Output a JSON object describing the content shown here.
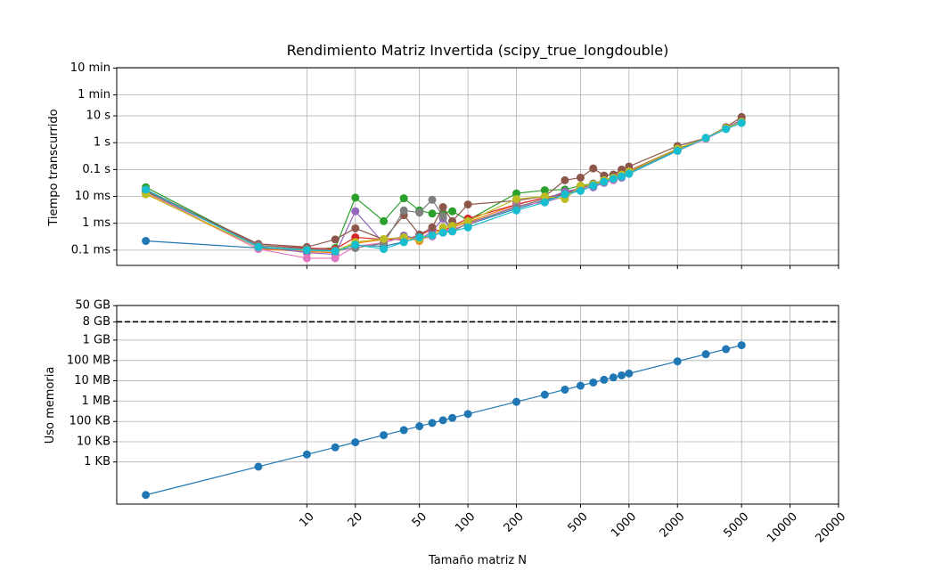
{
  "chart_data": [
    {
      "type": "line",
      "title": "Rendimiento Matriz Invertida (scipy_true_longdouble)",
      "ylabel": "Tiempo transcurrido",
      "xscale": "log",
      "yscale": "log",
      "grid": true,
      "xlim": [
        0.66,
        20000
      ],
      "ylim": [
        2.7e-05,
        620
      ],
      "yticks": [
        {
          "value": 0.0001,
          "label": "0.1 ms"
        },
        {
          "value": 0.001,
          "label": "1 ms"
        },
        {
          "value": 0.01,
          "label": "10 ms"
        },
        {
          "value": 0.1,
          "label": "0.1 s"
        },
        {
          "value": 1,
          "label": "1 s"
        },
        {
          "value": 10,
          "label": "10 s"
        },
        {
          "value": 60,
          "label": "1 min"
        },
        {
          "value": 600,
          "label": "10 min"
        }
      ],
      "x": [
        1,
        5,
        10,
        15,
        20,
        30,
        40,
        50,
        60,
        70,
        80,
        100,
        200,
        300,
        400,
        500,
        600,
        700,
        800,
        900,
        1000,
        2000,
        3000,
        4000,
        5000
      ],
      "series": [
        {
          "color": "#1f77b4",
          "values": [
            0.00022,
            0.00012,
            0.0001,
            0.0001,
            0.00015,
            0.00014,
            0.0002,
            0.0003,
            0.00035,
            0.00045,
            0.0006,
            0.0009,
            0.0035,
            0.007,
            0.012,
            0.018,
            0.026,
            0.035,
            0.045,
            0.055,
            0.07,
            0.5,
            1.4,
            3.3,
            5.5
          ]
        },
        {
          "color": "#ff7f0e",
          "values": [
            0.013,
            0.00011,
            9e-05,
            8e-05,
            0.00018,
            0.00025,
            0.0003,
            0.00022,
            0.0004,
            0.00055,
            0.0007,
            0.0011,
            0.005,
            0.009,
            0.013,
            0.022,
            0.028,
            0.038,
            0.048,
            0.06,
            0.08,
            0.55,
            1.5,
            3.5,
            6
          ]
        },
        {
          "color": "#2ca02c",
          "values": [
            0.022,
            0.00015,
            0.00011,
            0.00012,
            0.009,
            0.0012,
            0.0085,
            0.003,
            0.0023,
            0.0024,
            0.0028,
            0.0013,
            0.013,
            0.017,
            0.018,
            0.025,
            0.03,
            0.04,
            0.05,
            0.06,
            0.09,
            0.6,
            1.5,
            3.5,
            6
          ]
        },
        {
          "color": "#d62728",
          "values": [
            0.018,
            0.00015,
            0.00012,
            0.00011,
            0.0003,
            0.00025,
            0.00025,
            0.00035,
            0.0006,
            0.0005,
            0.0008,
            0.0015,
            0.005,
            0.009,
            0.013,
            0.02,
            0.03,
            0.04,
            0.05,
            0.07,
            0.09,
            0.6,
            1.5,
            3.5,
            7
          ]
        },
        {
          "color": "#9467bd",
          "values": [
            0.016,
            0.00014,
            8e-05,
            7e-05,
            0.0028,
            0.00018,
            0.00035,
            0.00025,
            0.0005,
            0.0015,
            0.0005,
            0.001,
            0.004,
            0.008,
            0.015,
            0.02,
            0.022,
            0.032,
            0.04,
            0.05,
            0.07,
            0.55,
            1.5,
            3.5,
            7
          ]
        },
        {
          "color": "#8c564b",
          "values": [
            0.016,
            0.00017,
            0.00013,
            0.00025,
            0.00065,
            0.00025,
            0.002,
            0.00038,
            0.0007,
            0.004,
            0.0012,
            0.005,
            0.007,
            0.01,
            0.04,
            0.05,
            0.11,
            0.06,
            0.065,
            0.1,
            0.13,
            0.75,
            1.5,
            3.8,
            9
          ]
        },
        {
          "color": "#e377c2",
          "values": [
            0.015,
            0.00011,
            5e-05,
            5e-05,
            0.00014,
            0.00019,
            0.0003,
            0.00025,
            0.00032,
            0.0005,
            0.0006,
            0.0009,
            0.0045,
            0.006,
            0.01,
            0.018,
            0.025,
            0.035,
            0.04,
            0.055,
            0.07,
            0.5,
            1.4,
            3.3,
            6
          ]
        },
        {
          "color": "#7f7f7f",
          "values": [
            0.015,
            0.00015,
            0.00011,
            0.0001,
            0.00012,
            0.00018,
            0.003,
            0.0025,
            0.0075,
            0.0018,
            0.0005,
            0.001,
            0.004,
            0.008,
            0.012,
            0.02,
            0.03,
            0.04,
            0.05,
            0.06,
            0.08,
            0.55,
            1.5,
            3.5,
            6
          ]
        },
        {
          "color": "#bcbd22",
          "values": [
            0.012,
            0.00013,
            0.0001,
            9e-05,
            0.0002,
            0.00026,
            0.0003,
            0.00025,
            0.00035,
            0.0007,
            0.0008,
            0.0012,
            0.008,
            0.01,
            0.008,
            0.025,
            0.028,
            0.04,
            0.05,
            0.065,
            0.085,
            0.6,
            1.5,
            3.5,
            6
          ]
        },
        {
          "color": "#17becf",
          "values": [
            0.018,
            0.00013,
            0.0001,
            9e-05,
            0.00016,
            0.00011,
            0.0002,
            0.0003,
            0.00035,
            0.00045,
            0.0005,
            0.0007,
            0.003,
            0.006,
            0.012,
            0.016,
            0.025,
            0.035,
            0.045,
            0.055,
            0.07,
            0.5,
            1.5,
            3.2,
            5.5
          ]
        }
      ]
    },
    {
      "type": "line",
      "xlabel": "Tamaño matriz N",
      "ylabel": "Uso memoria",
      "xscale": "log",
      "yscale": "log",
      "grid": true,
      "xlim": [
        0.66,
        20000
      ],
      "ylim": [
        8.5,
        55000000000
      ],
      "xticks": [
        10,
        20,
        50,
        100,
        200,
        500,
        1000,
        2000,
        5000,
        10000,
        20000
      ],
      "yticks": [
        {
          "value": 1024,
          "label": "1 KB"
        },
        {
          "value": 10240,
          "label": "10 KB"
        },
        {
          "value": 102400,
          "label": "100 KB"
        },
        {
          "value": 1048576,
          "label": "1 MB"
        },
        {
          "value": 10485760,
          "label": "10 MB"
        },
        {
          "value": 104857600,
          "label": "100 MB"
        },
        {
          "value": 1073741824,
          "label": "1 GB"
        },
        {
          "value": 8589934592,
          "label": "8 GB"
        },
        {
          "value": 53687091200,
          "label": "50 GB"
        }
      ],
      "hline": 8589934592,
      "x": [
        1,
        5,
        10,
        15,
        20,
        30,
        40,
        50,
        60,
        70,
        80,
        100,
        200,
        300,
        400,
        500,
        600,
        700,
        800,
        900,
        1000,
        2000,
        3000,
        4000,
        5000
      ],
      "series": [
        {
          "color": "#1f77b4",
          "values": [
            24,
            600,
            2400,
            5400,
            9600,
            21600,
            38400,
            60000,
            86400,
            117600,
            153600,
            240000,
            960000,
            2160000,
            3840000,
            6000000,
            8640000,
            11760000,
            15360000,
            19440000,
            24000000,
            96000000,
            216000000,
            384000000,
            600000000
          ]
        }
      ]
    }
  ]
}
